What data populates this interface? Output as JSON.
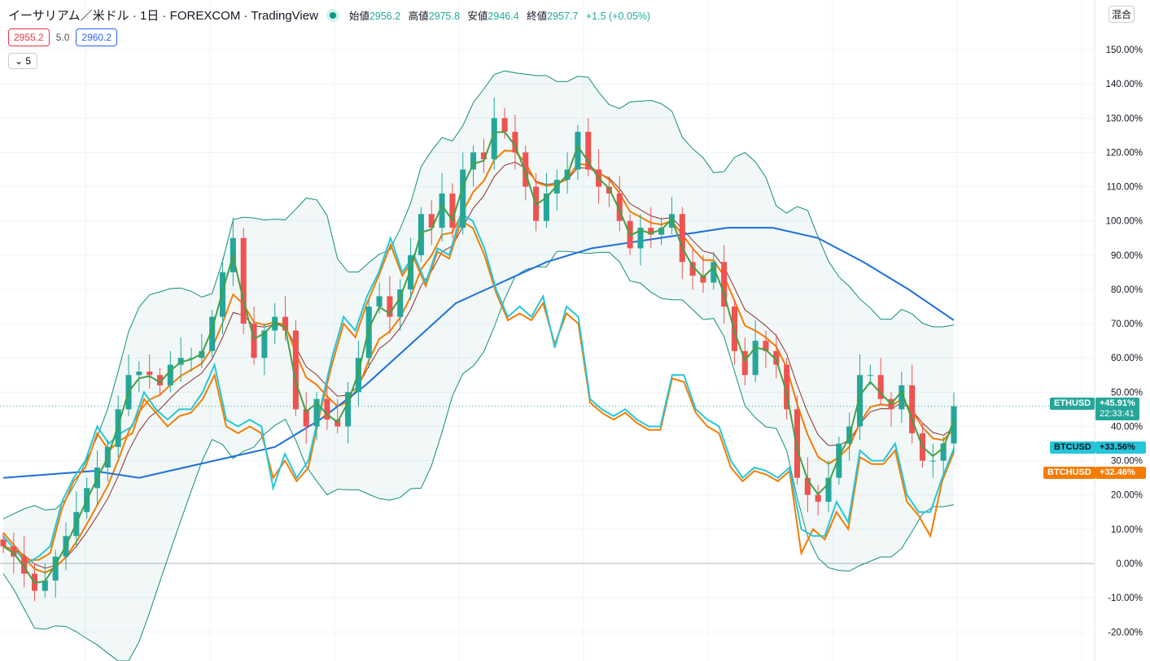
{
  "header": {
    "title": "イーサリアム／米ドル · 1日 · FOREXCOM · TradingView",
    "open_label": "始値",
    "open": "2956.2",
    "high_label": "高値",
    "high": "2975.8",
    "low_label": "安値",
    "low": "2946.4",
    "close_label": "終値",
    "close": "2957.7",
    "change": "+1.5 (+0.05%)"
  },
  "prices": {
    "bid": "2955.2",
    "spread": "5.0",
    "ask": "2960.2"
  },
  "indicator_toggle": "5",
  "scale_mode_button": "混合",
  "colors": {
    "up": "#26a69a",
    "down": "#ef5350",
    "btcusd": "#26c6da",
    "btchusd": "#f57c00",
    "ma_blue": "#1e6fd9",
    "ma_green": "#43a047",
    "ma_brown": "#8d2d2d",
    "ma_orange": "#f57c00",
    "band": "#138f7a"
  },
  "chart_data": {
    "type": "candlestick-comparison",
    "ylim": [
      -25,
      160
    ],
    "yticks": [
      "-20.00%",
      "-10.00%",
      "0.00%",
      "10.00%",
      "20.00%",
      "30.00%",
      "40.00%",
      "50.00%",
      "60.00%",
      "70.00%",
      "80.00%",
      "90.00%",
      "100.00%",
      "110.00%",
      "120.00%",
      "130.00%",
      "140.00%",
      "150.00%"
    ],
    "ethusd_close": [
      5,
      2,
      -3,
      -8,
      -5,
      2,
      8,
      15,
      22,
      28,
      34,
      45,
      55,
      56,
      55,
      52,
      58,
      60,
      60,
      62,
      72,
      85,
      95,
      70,
      60,
      68,
      72,
      68,
      45,
      40,
      48,
      42,
      40,
      50,
      60,
      75,
      78,
      72,
      80,
      90,
      102,
      98,
      108,
      98,
      115,
      120,
      118,
      130,
      126,
      120,
      110,
      100,
      108,
      112,
      115,
      126,
      115,
      110,
      108,
      100,
      92,
      98,
      96,
      98,
      102,
      88,
      84,
      82,
      88,
      75,
      62,
      55,
      65,
      62,
      58,
      45,
      25,
      20,
      18,
      25,
      35,
      40,
      55,
      55,
      48,
      45,
      52,
      38,
      30,
      30,
      35,
      45.91
    ],
    "btcusd": [
      8,
      4,
      0,
      2,
      5,
      18,
      25,
      30,
      40,
      35,
      38,
      40,
      50,
      45,
      42,
      45,
      45,
      50,
      58,
      42,
      40,
      42,
      40,
      22,
      32,
      25,
      30,
      45,
      60,
      72,
      68,
      78,
      85,
      95,
      85,
      90,
      82,
      92,
      90,
      102,
      100,
      92,
      80,
      72,
      75,
      72,
      78,
      63,
      75,
      72,
      48,
      45,
      43,
      45,
      42,
      40,
      40,
      55,
      55,
      45,
      42,
      40,
      30,
      25,
      28,
      27,
      25,
      28,
      10,
      8,
      8,
      18,
      12,
      33,
      30,
      30,
      35,
      20,
      15,
      15,
      25,
      33.56
    ],
    "btchusd": [
      9,
      5,
      1,
      1,
      3,
      16,
      24,
      28,
      38,
      33,
      36,
      38,
      48,
      44,
      40,
      43,
      44,
      48,
      55,
      40,
      38,
      40,
      38,
      25,
      30,
      24,
      28,
      44,
      58,
      70,
      66,
      76,
      84,
      93,
      84,
      89,
      81,
      91,
      89,
      100,
      98,
      90,
      79,
      71,
      73,
      71,
      76,
      64,
      73,
      70,
      47,
      44,
      42,
      44,
      41,
      39,
      39,
      54,
      53,
      44,
      40,
      38,
      28,
      24,
      27,
      26,
      24,
      27,
      3,
      10,
      7,
      15,
      10,
      31,
      29,
      29,
      33,
      18,
      14,
      8,
      24,
      32.46
    ],
    "ma_blue": [
      25,
      26,
      27,
      25,
      28,
      31,
      34,
      42,
      52,
      64,
      76,
      82,
      88,
      92,
      94,
      96,
      98,
      98,
      95,
      88,
      80,
      71
    ],
    "last": {
      "ETHUSD": "+45.91%",
      "countdown": "22:33:41",
      "BTCUSD": "+33.56%",
      "BTCHUSD": "+32.46%"
    }
  }
}
